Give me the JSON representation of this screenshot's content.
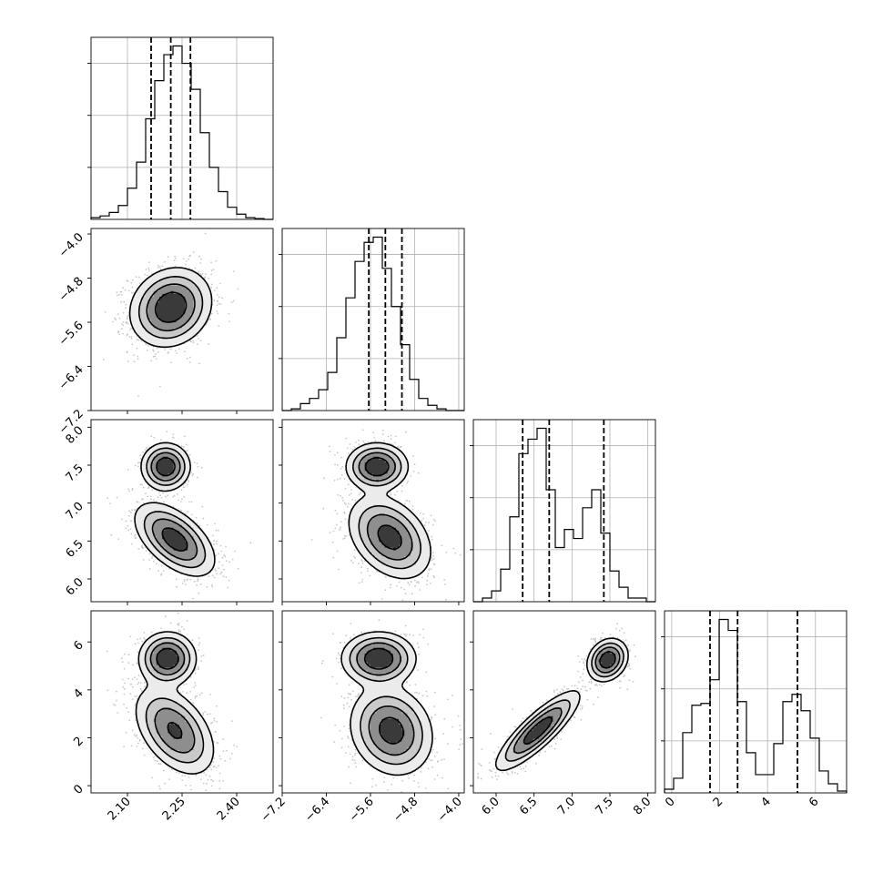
{
  "chart_data": {
    "type": "corner",
    "parameters": [
      {
        "ticks": [
          2.1,
          2.25,
          2.4
        ],
        "tick_labels": [
          "2.10",
          "2.25",
          "2.40"
        ],
        "range": [
          2.0,
          2.5
        ],
        "quantiles": [
          2.165,
          2.219,
          2.273
        ],
        "peaks": [
          {
            "mu": 2.219,
            "sigma": 0.05,
            "w": 1
          }
        ]
      },
      {
        "ticks": [
          -7.2,
          -6.4,
          -5.6,
          -4.8,
          -4.0
        ],
        "tick_labels": [
          "−7.2",
          "−6.4",
          "−5.6",
          "−4.8",
          "−4.0"
        ],
        "range": [
          -7.2,
          -3.9
        ],
        "quantiles": [
          -5.63,
          -5.33,
          -5.03
        ],
        "peaks": [
          {
            "mu": -5.33,
            "sigma": 0.32,
            "w": 1
          }
        ]
      },
      {
        "ticks": [
          6.0,
          6.5,
          7.0,
          7.5,
          8.0
        ],
        "tick_labels": [
          "6.0",
          "6.5",
          "7.0",
          "7.5",
          "8.0"
        ],
        "range": [
          5.7,
          8.1
        ],
        "quantiles": [
          6.35,
          6.7,
          7.42
        ],
        "peaks": [
          {
            "mu": 6.55,
            "sigma": 0.25,
            "w": 0.66
          },
          {
            "mu": 7.48,
            "sigma": 0.16,
            "w": 0.34
          }
        ]
      },
      {
        "ticks": [
          0,
          2,
          4,
          6
        ],
        "tick_labels": [
          "0",
          "2",
          "4",
          "6"
        ],
        "range": [
          -0.3,
          7.3
        ],
        "quantiles": [
          1.6,
          2.75,
          5.25
        ],
        "peaks": [
          {
            "mu": 2.2,
            "sigma": 0.95,
            "w": 0.62
          },
          {
            "mu": 5.3,
            "sigma": 0.55,
            "w": 0.38
          }
        ]
      }
    ],
    "histograms": [
      {
        "param": 0,
        "bins": [
          2.0,
          2.5
        ],
        "counts": [
          0.01,
          0.02,
          0.04,
          0.08,
          0.18,
          0.33,
          0.58,
          0.8,
          0.95,
          1.0,
          0.9,
          0.75,
          0.5,
          0.3,
          0.16,
          0.07,
          0.03,
          0.01,
          0.005,
          0.0
        ]
      },
      {
        "param": 1,
        "bins": [
          -7.2,
          -3.9
        ],
        "counts": [
          0.0,
          0.01,
          0.04,
          0.07,
          0.12,
          0.22,
          0.42,
          0.65,
          0.86,
          0.97,
          1.0,
          0.82,
          0.6,
          0.38,
          0.18,
          0.07,
          0.03,
          0.01,
          0.0,
          0.0
        ]
      },
      {
        "param": 2,
        "bins": [
          5.7,
          8.1
        ],
        "counts": [
          0.0,
          0.02,
          0.06,
          0.18,
          0.47,
          0.82,
          0.9,
          0.96,
          0.62,
          0.3,
          0.4,
          0.35,
          0.52,
          0.62,
          0.38,
          0.17,
          0.08,
          0.02,
          0.02,
          0.0
        ]
      },
      {
        "param": 3,
        "bins": [
          -0.3,
          7.3
        ],
        "counts": [
          0.02,
          0.08,
          0.33,
          0.48,
          0.49,
          0.62,
          0.95,
          0.89,
          0.5,
          0.22,
          0.1,
          0.1,
          0.27,
          0.5,
          0.54,
          0.45,
          0.3,
          0.12,
          0.05,
          0.01
        ]
      }
    ],
    "pairs": [
      {
        "x": 0,
        "y": 1,
        "components": [
          {
            "mx": 2.219,
            "my": -5.33,
            "sx": 0.05,
            "sy": 0.32,
            "rho": 0.15,
            "w": 1
          }
        ]
      },
      {
        "x": 0,
        "y": 2,
        "components": [
          {
            "mx": 2.205,
            "my": 7.48,
            "sx": 0.03,
            "sy": 0.14,
            "rho": 0.0,
            "w": 0.34
          },
          {
            "mx": 2.23,
            "my": 6.52,
            "sx": 0.05,
            "sy": 0.22,
            "rho": -0.55,
            "w": 0.66
          }
        ]
      },
      {
        "x": 1,
        "y": 2,
        "components": [
          {
            "mx": -5.48,
            "my": 7.48,
            "sx": 0.25,
            "sy": 0.14,
            "rho": 0.0,
            "w": 0.34
          },
          {
            "mx": -5.25,
            "my": 6.55,
            "sx": 0.34,
            "sy": 0.25,
            "rho": -0.35,
            "w": 0.66
          }
        ]
      },
      {
        "x": 0,
        "y": 3,
        "components": [
          {
            "mx": 2.21,
            "my": 5.3,
            "sx": 0.035,
            "sy": 0.5,
            "rho": 0.0,
            "w": 0.38
          },
          {
            "mx": 2.23,
            "my": 2.3,
            "sx": 0.05,
            "sy": 0.85,
            "rho": -0.45,
            "w": 0.62
          }
        ]
      },
      {
        "x": 1,
        "y": 3,
        "components": [
          {
            "mx": -5.45,
            "my": 5.3,
            "sx": 0.3,
            "sy": 0.5,
            "rho": 0.0,
            "w": 0.38
          },
          {
            "mx": -5.22,
            "my": 2.3,
            "sx": 0.34,
            "sy": 0.85,
            "rho": -0.15,
            "w": 0.62
          }
        ]
      },
      {
        "x": 2,
        "y": 3,
        "components": [
          {
            "mx": 7.47,
            "my": 5.25,
            "sx": 0.12,
            "sy": 0.4,
            "rho": 0.2,
            "w": 0.34
          },
          {
            "mx": 6.55,
            "my": 2.3,
            "sx": 0.25,
            "sy": 0.75,
            "rho": 0.85,
            "w": 0.66
          }
        ]
      }
    ],
    "contour_levels": 4,
    "grid": true,
    "colors": {
      "axis": "#000000",
      "grid": "#b0b0b0",
      "scatter": "#c8c8c8",
      "density_dark": "#000000"
    }
  }
}
